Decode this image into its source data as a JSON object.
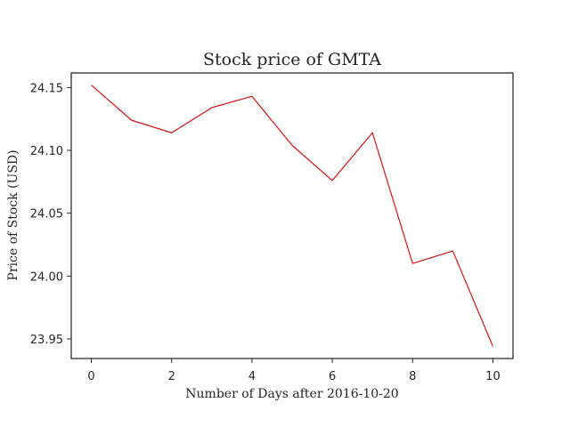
{
  "chart_data": {
    "type": "line",
    "title": "Stock price of GMTA",
    "xlabel": "Number of Days after 2016-10-20",
    "ylabel": "Price of Stock (USD)",
    "x": [
      0,
      1,
      2,
      3,
      4,
      5,
      6,
      7,
      8,
      9,
      10
    ],
    "series": [
      {
        "values": [
          24.152,
          24.124,
          24.114,
          24.134,
          24.143,
          24.104,
          24.076,
          24.114,
          24.01,
          24.02,
          23.944
        ]
      }
    ],
    "xticks": [
      0,
      2,
      4,
      6,
      8,
      10
    ],
    "xtick_labels": [
      "0",
      "2",
      "4",
      "6",
      "8",
      "10"
    ],
    "yticks": [
      23.95,
      24.0,
      24.05,
      24.1,
      24.15
    ],
    "ytick_labels": [
      "23.95",
      "24.00",
      "24.05",
      "24.10",
      "24.15"
    ],
    "xlim": [
      -0.5,
      10.5
    ],
    "ylim": [
      23.9344,
      24.1616
    ],
    "grid": false,
    "legend": "none",
    "colors": {
      "line": "#dd1111",
      "axes": "#262626"
    }
  }
}
